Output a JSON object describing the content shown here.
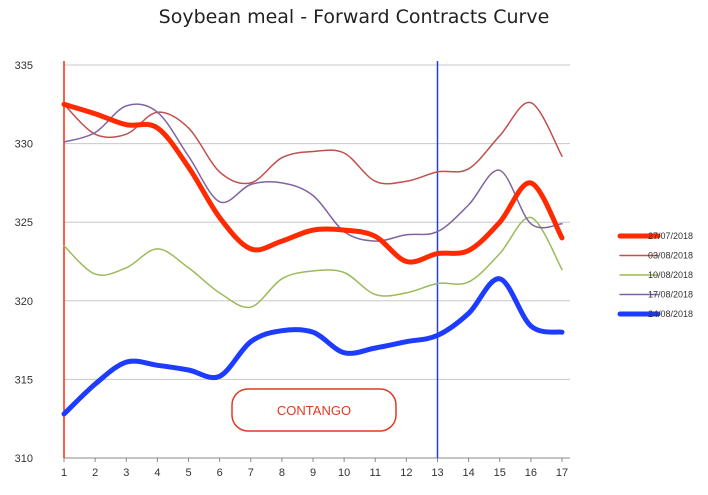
{
  "chart_data": {
    "type": "line",
    "title": "Soybean meal - Forward Contracts Curve",
    "xlabel": "",
    "ylabel": "",
    "x": [
      1,
      2,
      3,
      4,
      5,
      6,
      7,
      8,
      9,
      10,
      11,
      12,
      13,
      14,
      15,
      16,
      17
    ],
    "ylim": [
      310,
      335
    ],
    "yticks": [
      310,
      315,
      320,
      325,
      330,
      335
    ],
    "grid": true,
    "legend_position": "right",
    "series": [
      {
        "name": "27/07/2018",
        "color": "#ff2a00",
        "bold": true,
        "values": [
          332.5,
          331.9,
          331.2,
          331.0,
          328.5,
          325.3,
          323.3,
          323.8,
          324.5,
          324.5,
          324.1,
          322.5,
          323.0,
          323.2,
          325.0,
          327.5,
          324.0
        ]
      },
      {
        "name": "03/08/2018",
        "color": "#c0504d",
        "bold": false,
        "values": [
          332.5,
          330.6,
          330.6,
          332.0,
          331.0,
          328.2,
          327.5,
          329.1,
          329.5,
          329.4,
          327.6,
          327.6,
          328.2,
          328.4,
          330.5,
          332.6,
          329.2
        ]
      },
      {
        "name": "10/08/2018",
        "color": "#9bbb59",
        "bold": false,
        "values": [
          323.5,
          321.7,
          322.1,
          323.3,
          322.1,
          320.5,
          319.6,
          321.4,
          321.9,
          321.8,
          320.4,
          320.5,
          321.1,
          321.2,
          323.0,
          325.3,
          322.0
        ]
      },
      {
        "name": "17/08/2018",
        "color": "#8064a2",
        "bold": false,
        "values": [
          330.1,
          330.7,
          332.4,
          332.0,
          329.2,
          326.3,
          327.4,
          327.5,
          326.7,
          324.4,
          323.8,
          324.2,
          324.4,
          326.1,
          328.3,
          324.9,
          324.9
        ]
      },
      {
        "name": "24/08/2018",
        "color": "#1e3cff",
        "bold": true,
        "values": [
          312.8,
          314.7,
          316.1,
          315.9,
          315.6,
          315.2,
          317.4,
          318.1,
          318.0,
          316.7,
          317.0,
          317.4,
          317.8,
          319.2,
          321.4,
          318.4,
          318.0
        ]
      }
    ],
    "vertical_lines": [
      {
        "x": 1,
        "color": "#ff2a00"
      },
      {
        "x": 13,
        "color": "#1e3cff"
      }
    ],
    "annotation": {
      "text": "CONTANGO",
      "color": "#e03a20"
    }
  }
}
